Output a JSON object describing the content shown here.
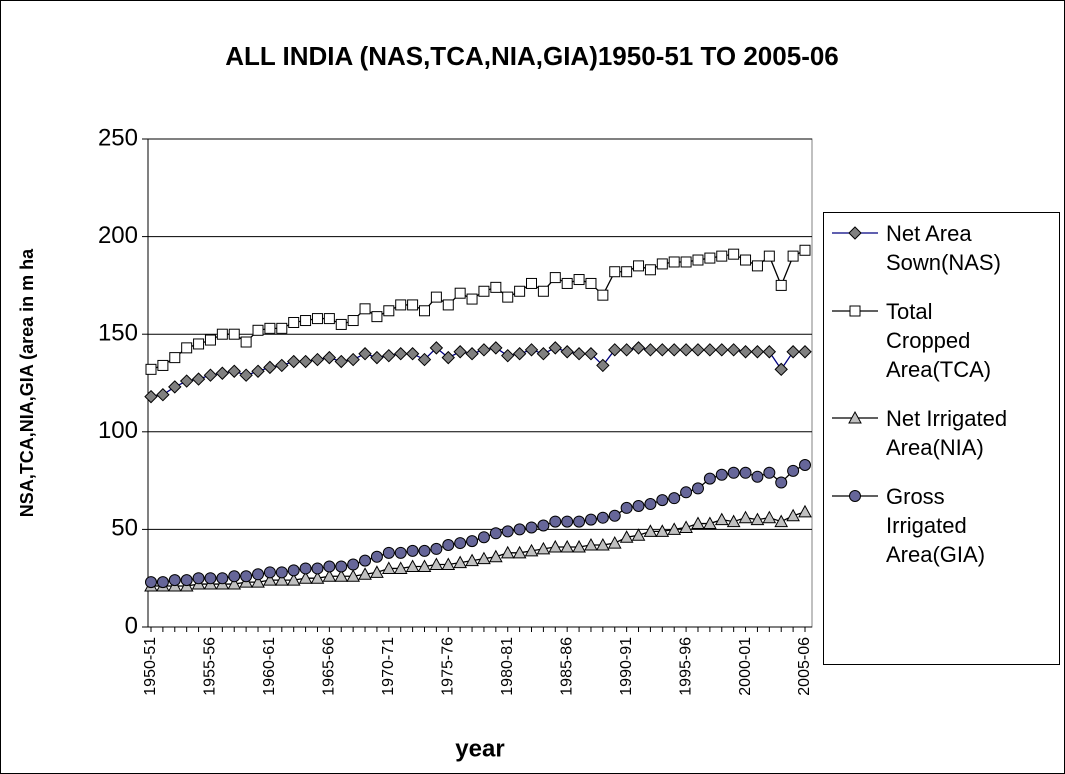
{
  "chart_data": {
    "type": "line",
    "title": "ALL INDIA (NAS,TCA,NIA,GIA)1950-51 TO 2005-06",
    "x_label": "year",
    "y_label": "NSA,TCA,NIA,GIA (area in m ha",
    "categories": [
      "1950-51",
      null,
      null,
      null,
      null,
      "1955-56",
      null,
      null,
      null,
      null,
      "1960-61",
      null,
      null,
      null,
      null,
      "1965-66",
      null,
      null,
      null,
      null,
      "1970-71",
      null,
      null,
      null,
      null,
      "1975-76",
      null,
      null,
      null,
      null,
      "1980-81",
      null,
      null,
      null,
      null,
      "1985-86",
      null,
      null,
      null,
      null,
      "1990-91",
      null,
      null,
      null,
      null,
      "1995-96",
      null,
      null,
      null,
      null,
      "2000-01",
      null,
      null,
      null,
      null,
      "2005-06"
    ],
    "series": [
      {
        "name": "Net Area Sown(NAS)",
        "color": "#808080",
        "line_color": "#000080",
        "marker": "diamond",
        "values": [
          118,
          119,
          123,
          126,
          127,
          129,
          130,
          131,
          129,
          131,
          133,
          134,
          136,
          136,
          137,
          138,
          136,
          137,
          140,
          138,
          139,
          140,
          140,
          137,
          143,
          138,
          141,
          140,
          142,
          143,
          139,
          140,
          142,
          140,
          143,
          141,
          140,
          140,
          134,
          142,
          142,
          143,
          142,
          142,
          142,
          142,
          142,
          142,
          142,
          142,
          141,
          141,
          141,
          132,
          141,
          141
        ]
      },
      {
        "name": "Total Cropped Area(TCA)",
        "color": "#ffffff",
        "line_color": "#000000",
        "marker": "square",
        "values": [
          132,
          134,
          138,
          143,
          145,
          147,
          150,
          150,
          146,
          152,
          153,
          153,
          156,
          157,
          158,
          158,
          155,
          157,
          163,
          159,
          162,
          165,
          165,
          162,
          169,
          165,
          171,
          168,
          172,
          174,
          169,
          172,
          176,
          172,
          179,
          176,
          178,
          176,
          170,
          182,
          182,
          185,
          183,
          186,
          187,
          187,
          188,
          189,
          190,
          191,
          188,
          185,
          190,
          175,
          190,
          193
        ]
      },
      {
        "name": "Net Irrigated Area(NIA)",
        "color": "#c0c0c0",
        "line_color": "#000000",
        "marker": "triangle",
        "values": [
          21,
          21,
          21,
          21,
          22,
          22,
          22,
          22,
          23,
          23,
          24,
          24,
          24,
          25,
          25,
          26,
          26,
          26,
          27,
          28,
          30,
          30,
          31,
          31,
          32,
          32,
          33,
          34,
          35,
          36,
          38,
          38,
          39,
          40,
          41,
          41,
          41,
          42,
          42,
          43,
          46,
          47,
          49,
          49,
          50,
          51,
          53,
          53,
          55,
          54,
          56,
          55,
          56,
          54,
          57,
          59
        ]
      },
      {
        "name": "Gross Irrigated Area(GIA)",
        "color": "#666699",
        "line_color": "#000000",
        "marker": "circle",
        "values": [
          23,
          23,
          24,
          24,
          25,
          25,
          25,
          26,
          26,
          27,
          28,
          28,
          29,
          30,
          30,
          31,
          31,
          32,
          34,
          36,
          38,
          38,
          39,
          39,
          40,
          42,
          43,
          44,
          46,
          48,
          49,
          50,
          51,
          52,
          54,
          54,
          54,
          55,
          56,
          57,
          61,
          62,
          63,
          65,
          66,
          69,
          71,
          76,
          78,
          79,
          79,
          77,
          79,
          74,
          80,
          83
        ]
      }
    ],
    "ylim": [
      0,
      250
    ],
    "yticks": [
      0,
      50,
      100,
      150,
      200,
      250
    ],
    "grid": true
  }
}
